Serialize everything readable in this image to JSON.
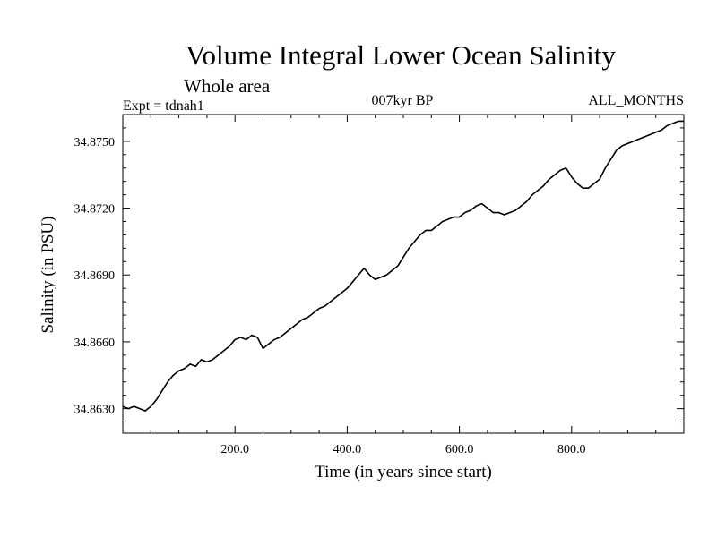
{
  "chart_data": {
    "type": "line",
    "title": "Volume Integral Lower Ocean Salinity",
    "subtitle": "Whole area",
    "experiment_label": "Expt = tdnah1",
    "period_label": "007kyr BP",
    "months_label": "ALL_MONTHS",
    "xlabel": "Time (in years since start)",
    "ylabel": "Salinity (in PSU)",
    "xlim": [
      0,
      1000
    ],
    "ylim": [
      34.8619,
      34.8762
    ],
    "x_ticks": [
      {
        "value": 200,
        "label": "200.0"
      },
      {
        "value": 400,
        "label": "400.0"
      },
      {
        "value": 600,
        "label": "600.0"
      },
      {
        "value": 800,
        "label": "800.0"
      }
    ],
    "y_ticks": [
      {
        "value": 34.863,
        "label": "34.8630"
      },
      {
        "value": 34.866,
        "label": "34.8660"
      },
      {
        "value": 34.869,
        "label": "34.8690"
      },
      {
        "value": 34.872,
        "label": "34.8720"
      },
      {
        "value": 34.875,
        "label": "34.8750"
      }
    ],
    "series": [
      {
        "name": "Salinity",
        "color": "#000000",
        "x": [
          0,
          10,
          20,
          30,
          40,
          50,
          60,
          70,
          80,
          90,
          100,
          110,
          120,
          130,
          140,
          150,
          160,
          170,
          180,
          190,
          200,
          210,
          220,
          230,
          240,
          250,
          260,
          270,
          280,
          290,
          300,
          310,
          320,
          330,
          340,
          350,
          360,
          370,
          380,
          390,
          400,
          410,
          420,
          430,
          440,
          450,
          460,
          470,
          480,
          490,
          500,
          510,
          520,
          530,
          540,
          550,
          560,
          570,
          580,
          590,
          600,
          610,
          620,
          630,
          640,
          650,
          660,
          670,
          680,
          690,
          700,
          710,
          720,
          730,
          740,
          750,
          760,
          770,
          780,
          790,
          800,
          810,
          820,
          830,
          840,
          850,
          860,
          870,
          880,
          890,
          900,
          910,
          920,
          930,
          940,
          950,
          960,
          970,
          980,
          990,
          1000
        ],
        "values": [
          34.8631,
          34.863,
          34.8631,
          34.863,
          34.8629,
          34.8631,
          34.8634,
          34.8638,
          34.8642,
          34.8645,
          34.8647,
          34.8648,
          34.865,
          34.8649,
          34.8652,
          34.8651,
          34.8652,
          34.8654,
          34.8656,
          34.8658,
          34.8661,
          34.8662,
          34.8661,
          34.8663,
          34.8662,
          34.8657,
          34.8659,
          34.8661,
          34.8662,
          34.8664,
          34.8666,
          34.8668,
          34.867,
          34.8671,
          34.8673,
          34.8675,
          34.8676,
          34.8678,
          34.868,
          34.8682,
          34.8684,
          34.8687,
          34.869,
          34.8693,
          34.869,
          34.8688,
          34.8689,
          34.869,
          34.8692,
          34.8694,
          34.8698,
          34.8702,
          34.8705,
          34.8708,
          34.871,
          34.871,
          34.8712,
          34.8714,
          34.8715,
          34.8716,
          34.8716,
          34.8718,
          34.8719,
          34.8721,
          34.8722,
          34.872,
          34.8718,
          34.8718,
          34.8717,
          34.8718,
          34.8719,
          34.8721,
          34.8723,
          34.8726,
          34.8728,
          34.873,
          34.8733,
          34.8735,
          34.8737,
          34.8738,
          34.8734,
          34.8731,
          34.8729,
          34.8729,
          34.8731,
          34.8733,
          34.8738,
          34.8742,
          34.8746,
          34.8748,
          34.8749,
          34.875,
          34.8751,
          34.8752,
          34.8753,
          34.8754,
          34.8755,
          34.8757,
          34.8758,
          34.8759,
          34.8759
        ]
      }
    ]
  }
}
